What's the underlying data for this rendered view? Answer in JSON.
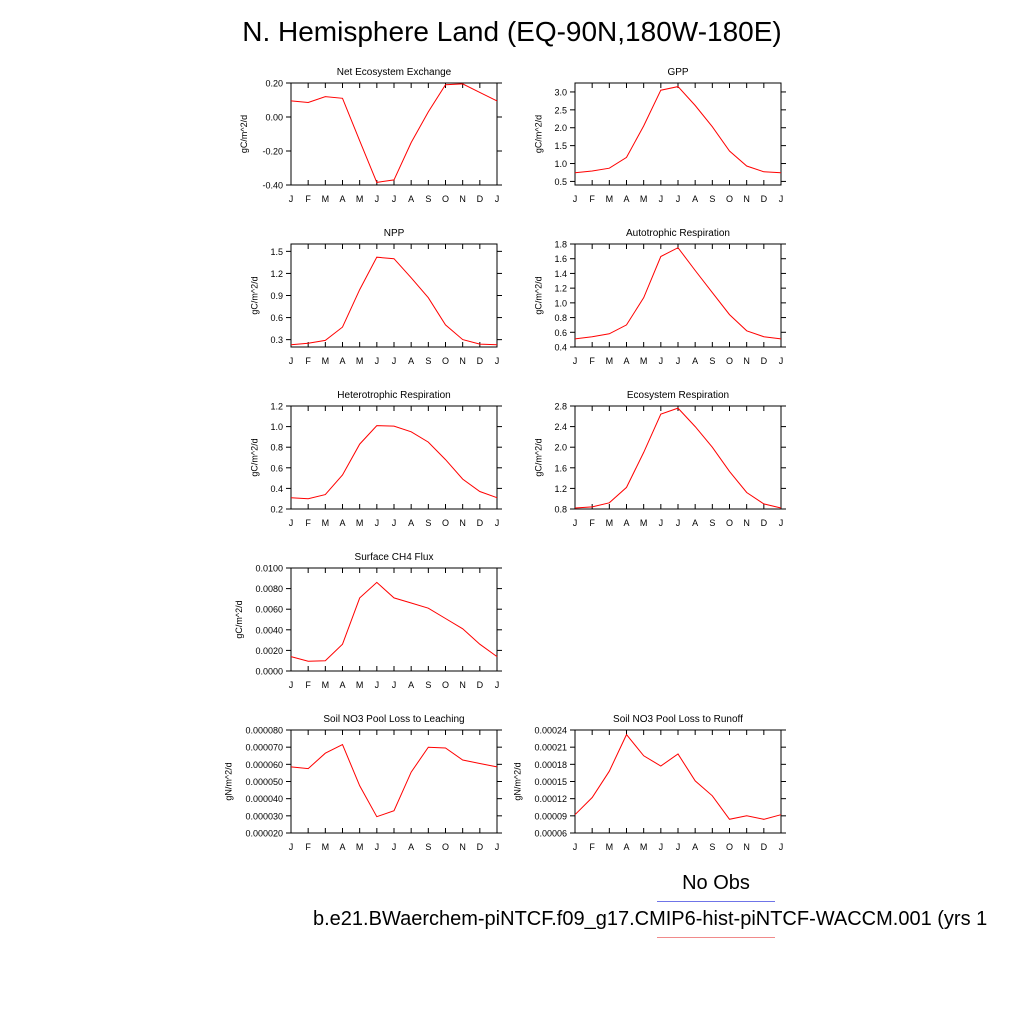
{
  "title": "N. Hemisphere Land (EQ-90N,180W-180E)",
  "legend": {
    "obs_label": "No Obs",
    "case_label": "b.e21.BWaerchem-piNTCF.f09_g17.CMIP6-hist-piNTCF-WACCM.001 (yrs 1",
    "obs_color": "#6f74e8",
    "case_color": "#f08a8a"
  },
  "line_color": "#ff0000",
  "chart_data": [
    {
      "type": "line",
      "title": "Net Ecosystem Exchange",
      "ylabel": "gC/m^2/d",
      "categories": [
        "J",
        "F",
        "M",
        "A",
        "M",
        "J",
        "J",
        "A",
        "S",
        "O",
        "N",
        "D",
        "J"
      ],
      "ylim": [
        -0.4,
        0.2
      ],
      "yticks": [
        "0.20",
        "0.00",
        "-0.20",
        "-0.40"
      ],
      "values": [
        0.095,
        0.085,
        0.12,
        0.11,
        -0.14,
        -0.385,
        -0.37,
        -0.15,
        0.03,
        0.19,
        0.195,
        0.145,
        0.095
      ]
    },
    {
      "type": "line",
      "title": "GPP",
      "ylabel": "gC/m^2/d",
      "categories": [
        "J",
        "F",
        "M",
        "A",
        "M",
        "J",
        "J",
        "A",
        "S",
        "O",
        "N",
        "D",
        "J"
      ],
      "ylim": [
        0.4,
        3.25
      ],
      "yticks": [
        "3.0",
        "2.5",
        "2.0",
        "1.5",
        "1.0",
        "0.5"
      ],
      "values": [
        0.74,
        0.79,
        0.87,
        1.17,
        2.05,
        3.05,
        3.15,
        2.62,
        2.03,
        1.35,
        0.93,
        0.77,
        0.74
      ]
    },
    {
      "type": "line",
      "title": "NPP",
      "ylabel": "gC/m^2/d",
      "categories": [
        "J",
        "F",
        "M",
        "A",
        "M",
        "J",
        "J",
        "A",
        "S",
        "O",
        "N",
        "D",
        "J"
      ],
      "ylim": [
        0.2,
        1.6
      ],
      "yticks": [
        "1.5",
        "1.2",
        "0.9",
        "0.6",
        "0.3"
      ],
      "values": [
        0.23,
        0.25,
        0.29,
        0.47,
        0.98,
        1.42,
        1.4,
        1.14,
        0.87,
        0.5,
        0.3,
        0.24,
        0.23
      ]
    },
    {
      "type": "line",
      "title": "Autotrophic Respiration",
      "ylabel": "gC/m^2/d",
      "categories": [
        "J",
        "F",
        "M",
        "A",
        "M",
        "J",
        "J",
        "A",
        "S",
        "O",
        "N",
        "D",
        "J"
      ],
      "ylim": [
        0.4,
        1.8
      ],
      "yticks": [
        "1.8",
        "1.6",
        "1.4",
        "1.2",
        "1.0",
        "0.8",
        "0.6",
        "0.4"
      ],
      "values": [
        0.51,
        0.54,
        0.58,
        0.7,
        1.07,
        1.63,
        1.75,
        1.44,
        1.14,
        0.84,
        0.62,
        0.54,
        0.51
      ]
    },
    {
      "type": "line",
      "title": "Heterotrophic Respiration",
      "ylabel": "gC/m^2/d",
      "categories": [
        "J",
        "F",
        "M",
        "A",
        "M",
        "J",
        "J",
        "A",
        "S",
        "O",
        "N",
        "D",
        "J"
      ],
      "ylim": [
        0.2,
        1.2
      ],
      "yticks": [
        "1.2",
        "1.0",
        "0.8",
        "0.6",
        "0.4",
        "0.2"
      ],
      "values": [
        0.31,
        0.3,
        0.34,
        0.53,
        0.83,
        1.01,
        1.005,
        0.95,
        0.85,
        0.68,
        0.49,
        0.37,
        0.31
      ]
    },
    {
      "type": "line",
      "title": "Ecosystem Respiration",
      "ylabel": "gC/m^2/d",
      "categories": [
        "J",
        "F",
        "M",
        "A",
        "M",
        "J",
        "J",
        "A",
        "S",
        "O",
        "N",
        "D",
        "J"
      ],
      "ylim": [
        0.8,
        2.8
      ],
      "yticks": [
        "2.8",
        "2.4",
        "2.0",
        "1.6",
        "1.2",
        "0.8"
      ],
      "values": [
        0.82,
        0.84,
        0.92,
        1.22,
        1.9,
        2.64,
        2.76,
        2.4,
        2.0,
        1.53,
        1.12,
        0.9,
        0.82
      ]
    },
    {
      "type": "line",
      "title": "Surface CH4 Flux",
      "ylabel": "gC/m^2/d",
      "categories": [
        "J",
        "F",
        "M",
        "A",
        "M",
        "J",
        "J",
        "A",
        "S",
        "O",
        "N",
        "D",
        "J"
      ],
      "ylim": [
        0.0,
        0.01
      ],
      "yticks": [
        "0.0100",
        "0.0080",
        "0.0060",
        "0.0040",
        "0.0020",
        "0.0000"
      ],
      "values": [
        0.0014,
        0.00095,
        0.001,
        0.0026,
        0.0071,
        0.0086,
        0.0071,
        0.0066,
        0.0061,
        0.0051,
        0.0041,
        0.0026,
        0.0014
      ]
    },
    {
      "type": "line",
      "title": "Soil NO3 Pool Loss to Leaching",
      "ylabel": "gN/m^2/d",
      "categories": [
        "J",
        "F",
        "M",
        "A",
        "M",
        "J",
        "J",
        "A",
        "S",
        "O",
        "N",
        "D",
        "J"
      ],
      "ylim": [
        2e-05,
        8e-05
      ],
      "yticks": [
        "0.000080",
        "0.000070",
        "0.000060",
        "0.000050",
        "0.000040",
        "0.000030",
        "0.000020"
      ],
      "values": [
        5.85e-05,
        5.75e-05,
        6.65e-05,
        7.15e-05,
        4.75e-05,
        2.95e-05,
        3.3e-05,
        5.55e-05,
        7e-05,
        6.95e-05,
        6.25e-05,
        6.05e-05,
        5.85e-05
      ]
    },
    {
      "type": "line",
      "title": "Soil NO3 Pool Loss to Runoff",
      "ylabel": "gN/m^2/d",
      "categories": [
        "J",
        "F",
        "M",
        "A",
        "M",
        "J",
        "J",
        "A",
        "S",
        "O",
        "N",
        "D",
        "J"
      ],
      "ylim": [
        6e-05,
        0.00024
      ],
      "yticks": [
        "0.00024",
        "0.00021",
        "0.00018",
        "0.00015",
        "0.00012",
        "0.00009",
        "0.00006"
      ],
      "values": [
        9.2e-05,
        0.000122,
        0.000168,
        0.000232,
        0.000195,
        0.000177,
        0.000198,
        0.000151,
        0.000125,
        8.4e-05,
        9e-05,
        8.4e-05,
        9.2e-05
      ]
    }
  ]
}
